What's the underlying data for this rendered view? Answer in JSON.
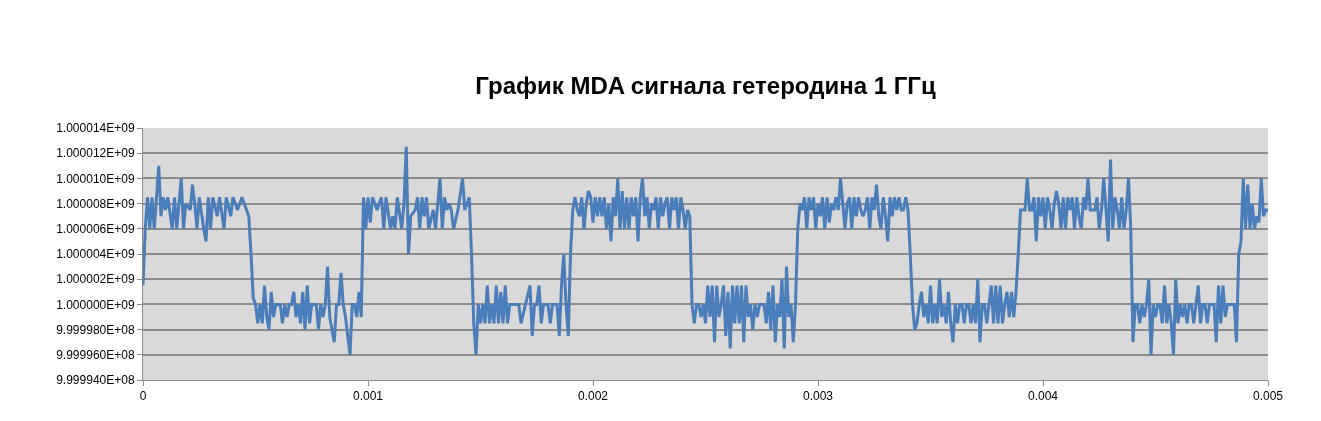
{
  "chart_data": {
    "type": "line",
    "title": "График MDA сигнала гетеродина 1 ГГц",
    "xlim": [
      0,
      0.005
    ],
    "xticks": [
      0,
      0.001,
      0.002,
      0.003,
      0.004,
      0.005
    ],
    "ylim": [
      999994000,
      1000014000
    ],
    "yticks": [
      {
        "value": 999994000,
        "label": "9.999940E+08"
      },
      {
        "value": 999996000,
        "label": "9.999960E+08"
      },
      {
        "value": 999998000,
        "label": "9.999980E+08"
      },
      {
        "value": 1000000000,
        "label": "1.000000E+09"
      },
      {
        "value": 1000002000,
        "label": "1.000002E+09"
      },
      {
        "value": 1000004000,
        "label": "1.000004E+09"
      },
      {
        "value": 1000006000,
        "label": "1.000006E+09"
      },
      {
        "value": 1000008000,
        "label": "1.000008E+09"
      },
      {
        "value": 1000010000,
        "label": "1.000010E+09"
      },
      {
        "value": 1000012000,
        "label": "1.000012E+09"
      },
      {
        "value": 1000014000,
        "label": "1.000014E+09"
      }
    ],
    "grid": "y",
    "marker": "none",
    "line_style": "solid",
    "series": [
      {
        "color": "#4a7ebb",
        "x": [
          0,
          1e-05,
          2e-05,
          3e-05,
          4e-05,
          5e-05,
          6e-05,
          7e-05,
          8e-05,
          9e-05,
          0.0001,
          0.00011,
          0.00013,
          0.00014,
          0.00015,
          0.00017,
          0.00018,
          0.00019,
          0.00021,
          0.00022,
          0.00023,
          0.00024,
          0.00025,
          0.00027,
          0.00028,
          0.00029,
          0.0003,
          0.00031,
          0.00033,
          0.00034,
          0.00036,
          0.00037,
          0.00039,
          0.0004,
          0.00042,
          0.00044,
          0.00046,
          0.00047,
          0.00048,
          0.00049,
          0.0005,
          0.00051,
          0.00052,
          0.00053,
          0.00054,
          0.00055,
          0.00056,
          0.00057,
          0.00058,
          0.00059,
          0.00061,
          0.00062,
          0.00063,
          0.00064,
          0.00065,
          0.00066,
          0.00067,
          0.00068,
          0.00069,
          0.0007,
          0.00071,
          0.00072,
          0.00073,
          0.00074,
          0.00075,
          0.00077,
          0.00078,
          0.00079,
          0.0008,
          0.00081,
          0.00082,
          0.00083,
          0.00085,
          0.00086,
          0.00087,
          0.00088,
          0.00089,
          0.0009,
          0.00092,
          0.00093,
          0.00094,
          0.00095,
          0.00096,
          0.00097,
          0.00098,
          0.00099,
          0.001,
          0.00101,
          0.00102,
          0.00104,
          0.00106,
          0.00107,
          0.00108,
          0.0011,
          0.00111,
          0.00112,
          0.00113,
          0.00115,
          0.00116,
          0.00117,
          0.00118,
          0.00119,
          0.00121,
          0.00122,
          0.00123,
          0.00124,
          0.00125,
          0.00126,
          0.00127,
          0.00129,
          0.0013,
          0.00131,
          0.00132,
          0.00133,
          0.00134,
          0.00135,
          0.00136,
          0.00137,
          0.00138,
          0.0014,
          0.00142,
          0.00143,
          0.00145,
          0.00146,
          0.00147,
          0.00148,
          0.00149,
          0.0015,
          0.00151,
          0.00152,
          0.00153,
          0.00154,
          0.00155,
          0.00156,
          0.00157,
          0.00158,
          0.00159,
          0.0016,
          0.00161,
          0.00162,
          0.00163,
          0.00165,
          0.00167,
          0.00168,
          0.0017,
          0.00172,
          0.00173,
          0.00174,
          0.00175,
          0.00176,
          0.00177,
          0.00178,
          0.0018,
          0.00181,
          0.00182,
          0.00184,
          0.00185,
          0.00186,
          0.00187,
          0.00188,
          0.00189,
          0.0019,
          0.00191,
          0.00192,
          0.00193,
          0.00194,
          0.00195,
          0.00196,
          0.00197,
          0.00198,
          0.00199,
          0.002,
          0.00201,
          0.00202,
          0.00203,
          0.00204,
          0.00205,
          0.00206,
          0.00207,
          0.00208,
          0.00209,
          0.0021,
          0.00211,
          0.00212,
          0.00213,
          0.00214,
          0.00215,
          0.00216,
          0.00217,
          0.00218,
          0.00219,
          0.0022,
          0.00221,
          0.00222,
          0.00223,
          0.00224,
          0.00225,
          0.00226,
          0.00227,
          0.00228,
          0.00229,
          0.0023,
          0.00231,
          0.00232,
          0.00233,
          0.00234,
          0.00235,
          0.00236,
          0.00237,
          0.00238,
          0.00239,
          0.0024,
          0.00241,
          0.00242,
          0.00243,
          0.00244,
          0.00245,
          0.00246,
          0.00247,
          0.00248,
          0.00249,
          0.0025,
          0.00251,
          0.00252,
          0.00253,
          0.00254,
          0.00255,
          0.00256,
          0.00257,
          0.00258,
          0.00259,
          0.0026,
          0.00261,
          0.00262,
          0.00263,
          0.00264,
          0.00265,
          0.00266,
          0.00267,
          0.00268,
          0.00269,
          0.0027,
          0.00271,
          0.00272,
          0.00273,
          0.00274,
          0.00276,
          0.00277,
          0.00278,
          0.00279,
          0.0028,
          0.00281,
          0.00282,
          0.00283,
          0.00284,
          0.00285,
          0.00286,
          0.00287,
          0.00288,
          0.00289,
          0.0029,
          0.00291,
          0.00292,
          0.00293,
          0.00294,
          0.00295,
          0.00296,
          0.00297,
          0.00298,
          0.00299,
          0.003,
          0.00301,
          0.00302,
          0.00303,
          0.00304,
          0.00305,
          0.00306,
          0.00307,
          0.00308,
          0.00309,
          0.0031,
          0.00311,
          0.00312,
          0.00313,
          0.00314,
          0.00315,
          0.00316,
          0.00317,
          0.00318,
          0.00319,
          0.0032,
          0.00321,
          0.00322,
          0.00323,
          0.00324,
          0.00325,
          0.00326,
          0.00327,
          0.00328,
          0.00329,
          0.0033,
          0.00331,
          0.00332,
          0.00333,
          0.00334,
          0.00335,
          0.00336,
          0.00337,
          0.00338,
          0.00339,
          0.0034,
          0.00341,
          0.00342,
          0.00343,
          0.00344,
          0.00345,
          0.00346,
          0.00347,
          0.00348,
          0.00349,
          0.0035,
          0.00351,
          0.00352,
          0.00353,
          0.00354,
          0.00355,
          0.00356,
          0.00357,
          0.00358,
          0.00359,
          0.0036,
          0.00361,
          0.00362,
          0.00363,
          0.00364,
          0.00365,
          0.00366,
          0.00367,
          0.00368,
          0.00369,
          0.0037,
          0.00371,
          0.00372,
          0.00373,
          0.00374,
          0.00375,
          0.00376,
          0.00377,
          0.00378,
          0.00379,
          0.0038,
          0.00381,
          0.00382,
          0.00383,
          0.00384,
          0.00385,
          0.00386,
          0.00387,
          0.00388,
          0.00389,
          0.0039,
          0.00391,
          0.00392,
          0.00393,
          0.00394,
          0.00395,
          0.00396,
          0.00397,
          0.00398,
          0.00399,
          0.004,
          0.00401,
          0.00402,
          0.00403,
          0.00404,
          0.00405,
          0.00406,
          0.00407,
          0.00408,
          0.00409,
          0.0041,
          0.00411,
          0.00412,
          0.00413,
          0.00414,
          0.00415,
          0.00416,
          0.00417,
          0.00418,
          0.00419,
          0.0042,
          0.00421,
          0.00422,
          0.00423,
          0.00424,
          0.00425,
          0.00426,
          0.00427,
          0.00428,
          0.00429,
          0.0043,
          0.00431,
          0.00432,
          0.00433,
          0.00434,
          0.00435,
          0.00436,
          0.00437,
          0.00438,
          0.00439,
          0.0044,
          0.00441,
          0.00442,
          0.00443,
          0.00444,
          0.00445,
          0.00446,
          0.00447,
          0.00448,
          0.00449,
          0.0045,
          0.00451,
          0.00452,
          0.00453,
          0.00454,
          0.00455,
          0.00456,
          0.00457,
          0.00458,
          0.00459,
          0.0046,
          0.00461,
          0.00462,
          0.00463,
          0.00464,
          0.00465,
          0.00466,
          0.00467,
          0.00468,
          0.00469,
          0.0047,
          0.00471,
          0.00472,
          0.00473,
          0.00474,
          0.00475,
          0.00476,
          0.00477,
          0.00478,
          0.00479,
          0.0048,
          0.00481,
          0.00482,
          0.00483,
          0.00484,
          0.00485,
          0.00486,
          0.00487,
          0.00488,
          0.00489,
          0.0049,
          0.00491,
          0.00492,
          0.00493,
          0.00494,
          0.00495,
          0.00496,
          0.00497,
          0.00498,
          0.00499,
          0.005
        ],
        "values": [
          1000001500,
          1000006000,
          1000008500,
          1000006000,
          1000008500,
          1000006000,
          1000008500,
          1000011000,
          1000007000,
          1000008500,
          1000007500,
          1000008500,
          1000006000,
          1000008500,
          1000006000,
          1000010000,
          1000006000,
          1000008000,
          1000007500,
          1000009500,
          1000008000,
          1000006000,
          1000008500,
          1000006000,
          1000005000,
          1000008500,
          1000006000,
          1000008500,
          1000007000,
          1000008500,
          1000006000,
          1000008500,
          1000007000,
          1000008500,
          1000007500,
          1000008500,
          1000007500,
          1000007000,
          1000004000,
          1000000500,
          1000000000,
          999998500,
          1000000000,
          999998500,
          1000001500,
          999999000,
          999998000,
          1000001000,
          999999000,
          1000000000,
          1000000000,
          999998500,
          1000000000,
          999999000,
          1000000000,
          1000000000,
          1000001000,
          999999000,
          1000000000,
          999998500,
          1000001000,
          999998000,
          1000001500,
          999998500,
          1000000000,
          1000000000,
          999998000,
          1000000000,
          999999000,
          1000000000,
          1000003000,
          999999000,
          999997000,
          1000000000,
          1000000000,
          1000002500,
          1000000000,
          999999000,
          999996000,
          1000000000,
          1000000000,
          999999000,
          1000001000,
          999999000,
          1000008500,
          1000006000,
          1000008500,
          1000006500,
          1000008500,
          1000007500,
          1000008500,
          1000006000,
          1000008500,
          1000006000,
          1000007000,
          1000006000,
          1000008500,
          1000006000,
          1000008000,
          1000012500,
          1000004000,
          1000007000,
          1000007500,
          1000008500,
          1000006000,
          1000008500,
          1000007000,
          1000008500,
          1000006000,
          1000007500,
          1000006000,
          1000008000,
          1000010000,
          1000006000,
          1000008500,
          1000007500,
          1000008000,
          1000007500,
          1000006000,
          1000007500,
          1000010000,
          1000007500,
          1000008500,
          1000004000,
          999998500,
          999996000,
          1000000000,
          999998500,
          1000000000,
          999998500,
          1000001500,
          999998500,
          1000000000,
          999998500,
          1000001500,
          999998500,
          1000001000,
          999998500,
          1000001500,
          999998500,
          1000000000,
          1000000000,
          1000000000,
          999998500,
          1000000000,
          1000001500,
          999997500,
          1000000000,
          1000000000,
          1000001500,
          999998500,
          1000000000,
          1000000000,
          999998500,
          1000000000,
          1000000000,
          999997500,
          1000001500,
          1000004000,
          1000000000,
          999997500,
          1000004000,
          1000007500,
          1000008500,
          1000007500,
          1000007000,
          1000008500,
          1000006000,
          1000008000,
          1000009000,
          1000008500,
          1000006500,
          1000008500,
          1000007000,
          1000008500,
          1000007000,
          1000008500,
          1000006000,
          1000008000,
          1000005000,
          1000008500,
          1000007000,
          1000010000,
          1000006000,
          1000009000,
          1000006000,
          1000008500,
          1000006000,
          1000008500,
          1000007000,
          1000008500,
          1000005000,
          1000008500,
          1000010000,
          1000007000,
          1000008500,
          1000006000,
          1000008000,
          1000007500,
          1000008500,
          1000006000,
          1000008500,
          1000007000,
          1000008000,
          1000008500,
          1000006000,
          1000008500,
          1000007500,
          1000008500,
          1000006000,
          1000008500,
          1000007500,
          1000006000,
          1000007500,
          1000007000,
          1000000000,
          999998500,
          1000000000,
          1000000000,
          999999000,
          1000000000,
          999998500,
          1000001500,
          999999000,
          1000001500,
          999997000,
          1000001500,
          999999000,
          1000000000,
          1000001500,
          999997500,
          1000001000,
          999996500,
          1000001500,
          999998500,
          1000001500,
          999998500,
          1000001500,
          999997000,
          1000001500,
          999999000,
          1000000000,
          999998000,
          1000000000,
          999999000,
          1000000000,
          1000000000,
          999998500,
          1000001000,
          999998000,
          1000001500,
          999997000,
          1000000000,
          999999000,
          1000002000,
          999996500,
          1000003000,
          999999000,
          1000000000,
          999997000,
          1000000000,
          1000006000,
          1000008000,
          1000007500,
          1000008500,
          1000006000,
          1000008500,
          1000007500,
          1000008500,
          1000006000,
          1000008000,
          1000007000,
          1000008500,
          1000006000,
          1000008500,
          1000006500,
          1000008000,
          1000007500,
          1000008500,
          1000007500,
          1000010000,
          1000008000,
          1000006000,
          1000008000,
          1000008500,
          1000006000,
          1000008500,
          1000007000,
          1000008500,
          1000007500,
          1000007000,
          1000007500,
          1000008500,
          1000006000,
          1000008500,
          1000007500,
          1000009500,
          1000007000,
          1000006000,
          1000008500,
          1000007000,
          1000005000,
          1000008500,
          1000007000,
          1000008500,
          1000007500,
          1000008500,
          1000007500,
          1000007500,
          1000008500,
          1000007500,
          1000004000,
          1000000000,
          999998000,
          999998500,
          1000000000,
          1000001000,
          999999000,
          1000000000,
          999998500,
          1000001500,
          999998500,
          1000000000,
          999998500,
          1000002000,
          999999000,
          1000000000,
          999998500,
          1000001000,
          999998500,
          999997000,
          1000000000,
          999998500,
          1000000000,
          1000000000,
          999998500,
          1000000000,
          1000000000,
          999998500,
          1000000000,
          999998500,
          1000002000,
          999997000,
          1000000000,
          1000000000,
          999998500,
          1000000000,
          1000001500,
          999998500,
          1000001500,
          999998500,
          1000001500,
          999998500,
          1000000000,
          1000001000,
          999999000,
          1000001000,
          999999000,
          1000001000,
          1000004000,
          1000007500,
          1000007500,
          1000007500,
          1000010000,
          1000007500,
          1000007500,
          1000008500,
          1000005000,
          1000008500,
          1000007000,
          1000008500,
          1000006000,
          1000008500,
          1000007500,
          1000006000,
          1000008000,
          1000009000,
          1000008000,
          1000006000,
          1000008500,
          1000006000,
          1000008500,
          1000007500,
          1000008500,
          1000006000,
          1000008500,
          1000007000,
          1000006000,
          1000008500,
          1000007500,
          1000010000,
          1000007500,
          1000007500,
          1000007500,
          1000008500,
          1000006000,
          1000007500,
          1000010000,
          1000007500,
          1000005000,
          1000011500,
          1000006000,
          1000008500,
          1000007500,
          1000006000,
          1000008500,
          1000006000,
          1000007500,
          1000010000,
          1000006000,
          999997000,
          1000000000,
          1000000000,
          999998500,
          1000000000,
          999999000,
          1000000000,
          1000002000,
          999996000,
          1000000000,
          999999000,
          1000000000,
          1000000000,
          999998500,
          1000001500,
          999998500,
          1000000000,
          999998500,
          999996000,
          1000002000,
          999998500,
          1000000000,
          999999000,
          1000000000,
          999998500,
          1000000000,
          1000000000,
          999998500,
          1000000000,
          1000001500,
          999998500,
          1000000000,
          1000000000,
          999998500,
          1000000000,
          1000000000,
          1000000000,
          999997000,
          1000001500,
          999998500,
          1000001500,
          999999000,
          1000000000,
          1000000000,
          1000000000,
          1000000000,
          999997000,
          1000004000,
          1000005000,
          1000010000,
          1000006000,
          1000009500,
          1000006000,
          1000008000,
          1000006000,
          1000007000,
          1000006500,
          1000010000,
          1000007000,
          1000007500,
          1000007500
        ]
      }
    ]
  }
}
